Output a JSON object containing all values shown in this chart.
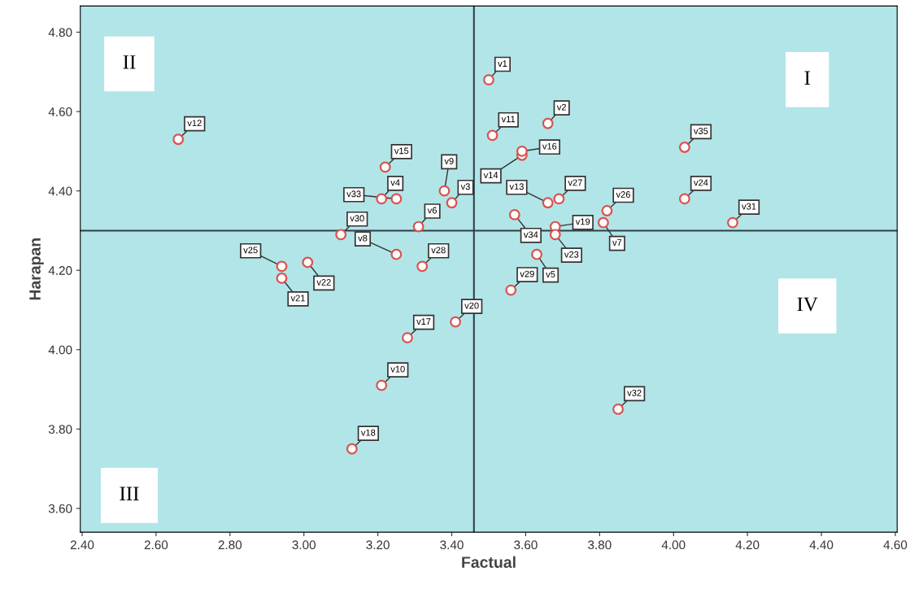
{
  "chart_data": {
    "type": "scatter",
    "xlabel": "Factual",
    "ylabel": "Harapan",
    "xlim": [
      2.395,
      4.605
    ],
    "ylim": [
      3.54,
      4.866
    ],
    "xticks": [
      {
        "value": 2.4,
        "label": "2.40"
      },
      {
        "value": 2.6,
        "label": "2.60"
      },
      {
        "value": 2.8,
        "label": "2.80"
      },
      {
        "value": 3.0,
        "label": "3.00"
      },
      {
        "value": 3.2,
        "label": "3.20"
      },
      {
        "value": 3.4,
        "label": "3.40"
      },
      {
        "value": 3.6,
        "label": "3.60"
      },
      {
        "value": 3.8,
        "label": "3.80"
      },
      {
        "value": 4.0,
        "label": "4.00"
      },
      {
        "value": 4.2,
        "label": "4.20"
      },
      {
        "value": 4.4,
        "label": "4.40"
      },
      {
        "value": 4.6,
        "label": "4.60"
      }
    ],
    "yticks": [
      {
        "value": 3.6,
        "label": "3.60"
      },
      {
        "value": 3.8,
        "label": "3.80"
      },
      {
        "value": 4.0,
        "label": "4.00"
      },
      {
        "value": 4.2,
        "label": "4.20"
      },
      {
        "value": 4.4,
        "label": "4.40"
      },
      {
        "value": 4.6,
        "label": "4.60"
      },
      {
        "value": 4.8,
        "label": "4.80"
      }
    ],
    "grid": false,
    "marker": "circle",
    "legend": false,
    "series": [
      {
        "color": "#d9534f",
        "x": [
          3.5,
          3.66,
          3.4,
          3.21,
          3.63,
          3.31,
          3.81,
          3.25,
          3.38,
          3.21,
          3.51,
          2.66,
          3.66,
          3.59,
          3.22,
          3.59,
          3.28,
          3.13,
          3.68,
          3.41,
          2.94,
          3.01,
          3.68,
          4.03,
          2.94,
          3.82,
          3.69,
          3.32,
          3.56,
          3.1,
          4.16,
          3.85,
          3.25,
          3.57,
          4.03
        ],
        "values": [
          4.68,
          4.57,
          4.37,
          4.38,
          4.24,
          4.31,
          4.32,
          4.24,
          4.4,
          3.91,
          4.54,
          4.53,
          4.37,
          4.49,
          4.46,
          4.5,
          4.03,
          3.75,
          4.31,
          4.07,
          4.18,
          4.22,
          4.29,
          4.38,
          4.21,
          4.35,
          4.38,
          4.21,
          4.15,
          4.29,
          4.32,
          3.85,
          4.38,
          4.34,
          4.51
        ],
        "value_labels": [
          "v1",
          "v2",
          "v3",
          "v4",
          "v5",
          "v6",
          "v7",
          "v8",
          "v9",
          "v10",
          "v11",
          "v12",
          "v13",
          "v14",
          "v15",
          "v16",
          "v17",
          "v18",
          "v19",
          "v20",
          "v21",
          "v22",
          "v23",
          "v24",
          "v25",
          "v26",
          "v27",
          "v28",
          "v29",
          "v30",
          "v31",
          "v32",
          "v33",
          "v34",
          "v35"
        ]
      }
    ],
    "ref_lines": [
      {
        "axis": "x",
        "value": 3.46,
        "color": "#2f3f46"
      },
      {
        "axis": "y",
        "value": 4.3,
        "color": "#2f3f46"
      }
    ],
    "annotations": [
      "I",
      "II",
      "III",
      "IV"
    ]
  }
}
